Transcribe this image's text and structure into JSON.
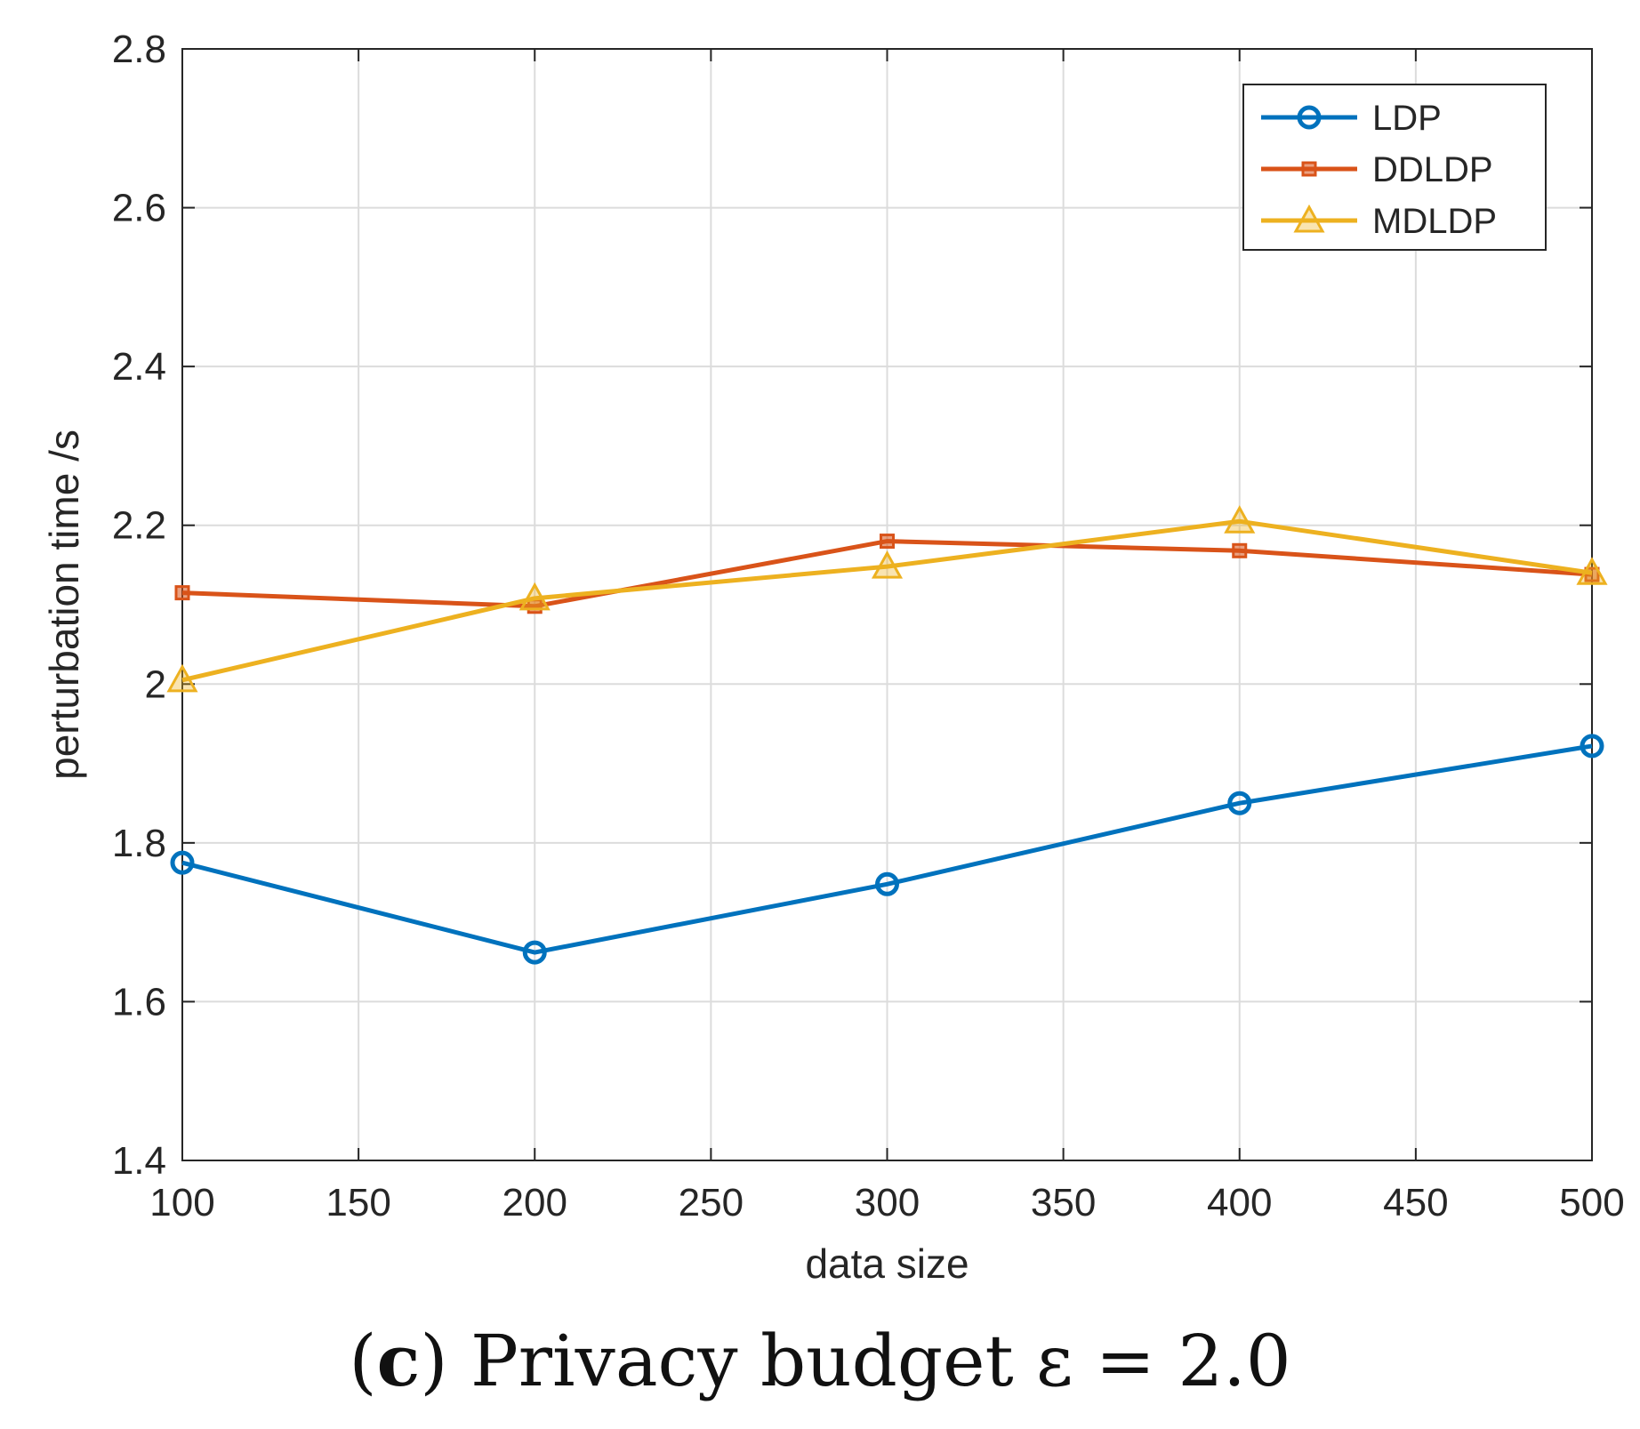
{
  "chart_data": {
    "type": "line",
    "xlabel": "data size",
    "ylabel": "perturbation time /s",
    "xlim": [
      100,
      500
    ],
    "ylim": [
      1.4,
      2.8
    ],
    "xticks": [
      "100",
      "150",
      "200",
      "250",
      "300",
      "350",
      "400",
      "450",
      "500"
    ],
    "yticks": [
      "1.4",
      "1.6",
      "1.8",
      "2",
      "2.2",
      "2.4",
      "2.6",
      "2.8"
    ],
    "grid": true,
    "legend_position": "top-right",
    "x": [
      100,
      200,
      300,
      400,
      500
    ],
    "series": [
      {
        "name": "LDP",
        "marker": "circle",
        "color": "#0072BD",
        "values": [
          1.775,
          1.662,
          1.748,
          1.85,
          1.922
        ]
      },
      {
        "name": "DDLDP",
        "marker": "square",
        "color": "#D95319",
        "values": [
          2.115,
          2.098,
          2.18,
          2.168,
          2.138
        ]
      },
      {
        "name": "MDLDP",
        "marker": "triangle",
        "color": "#EDB120",
        "values": [
          2.005,
          2.108,
          2.148,
          2.205,
          2.14
        ]
      }
    ]
  },
  "caption": {
    "open": "(",
    "letter": "c",
    "text": ") Privacy budget ε = 2.0"
  }
}
